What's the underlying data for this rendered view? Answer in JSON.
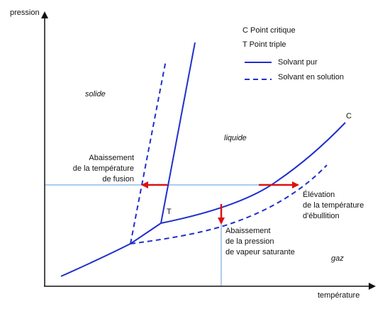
{
  "axes": {
    "y_label": "pression",
    "x_label": "température"
  },
  "legend": {
    "points": [
      "C Point critique",
      "T Point triple"
    ],
    "pure_label": "Solvant pur",
    "solution_label": "Solvant en solution"
  },
  "regions": {
    "solid": "solide",
    "liquid": "liquide",
    "gas": "gaz"
  },
  "points": {
    "critical": "C",
    "triple": "T"
  },
  "annotations": {
    "fusion": [
      "Abaissement",
      "de la température",
      "de fusion"
    ],
    "boiling": [
      "Élévation",
      "de la température",
      "d'ébullition"
    ],
    "vapor": [
      "Abaissement",
      "de la pression",
      "de vapeur saturante"
    ]
  },
  "colors": {
    "curve": "#1f2fcc",
    "arrow": "#dd1111",
    "guide": "#5b9bd5",
    "axis": "#111111"
  }
}
